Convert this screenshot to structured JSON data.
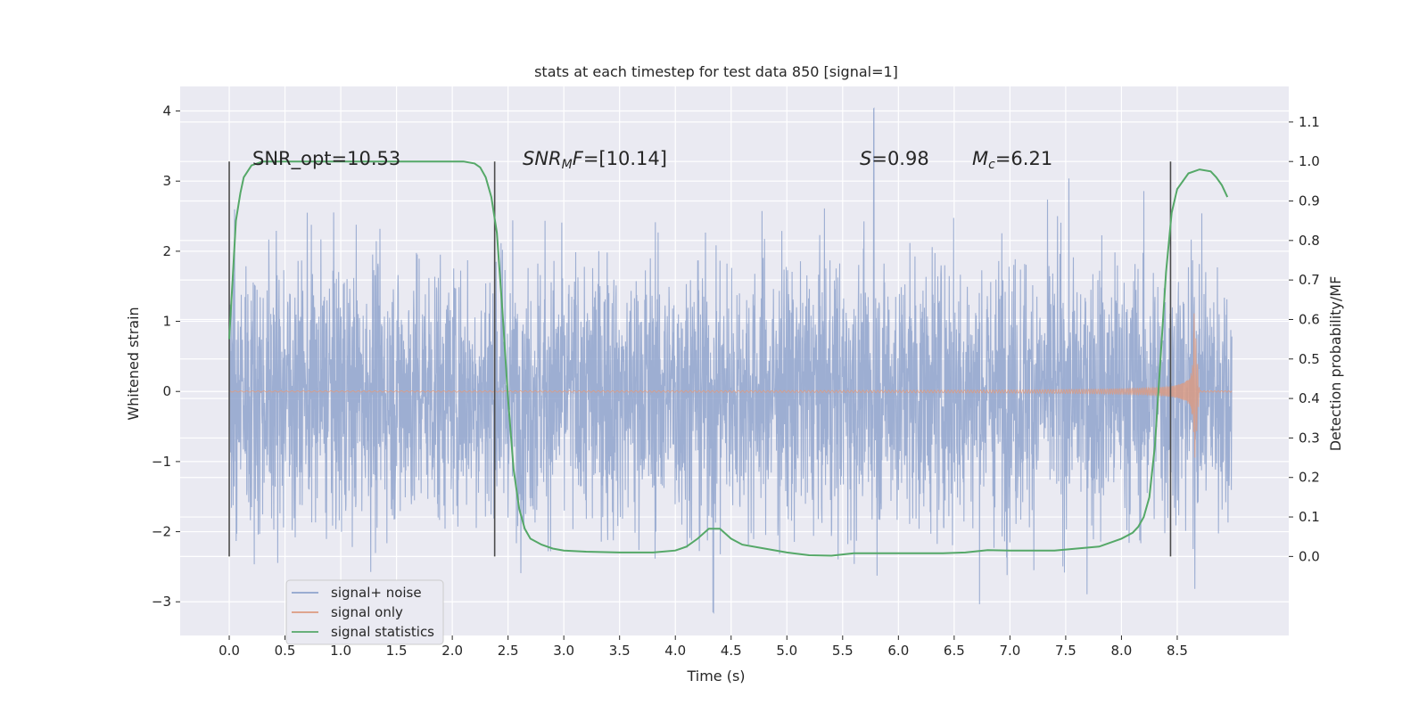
{
  "chart_data": {
    "type": "line",
    "title": "stats at each timestep for test data 850 [signal=1]",
    "xlabel": "Time (s)",
    "ylabel_left": "Whitened strain",
    "ylabel_right": "Detection probability/MF",
    "xlim": [
      -0.44,
      9.5
    ],
    "ylim_left": [
      -3.48,
      4.35
    ],
    "ylim_right": [
      -0.2,
      1.19
    ],
    "grid": true,
    "x_ticks": [
      0.0,
      0.5,
      1.0,
      1.5,
      2.0,
      2.5,
      3.0,
      3.5,
      4.0,
      4.5,
      5.0,
      5.5,
      6.0,
      6.5,
      7.0,
      7.5,
      8.0,
      8.5
    ],
    "x_tick_labels": [
      "0.0",
      "0.5",
      "1.0",
      "1.5",
      "2.0",
      "2.5",
      "3.0",
      "3.5",
      "4.0",
      "4.5",
      "5.0",
      "5.5",
      "6.0",
      "6.5",
      "7.0",
      "7.5",
      "8.0",
      "8.5"
    ],
    "y_ticks_left": [
      -3,
      -2,
      -1,
      0,
      1,
      2,
      3,
      4
    ],
    "y_tick_labels_left": [
      "−3",
      "−2",
      "−1",
      "0",
      "1",
      "2",
      "3",
      "4"
    ],
    "y_ticks_right": [
      0.0,
      0.1,
      0.2,
      0.3,
      0.4,
      0.5,
      0.6,
      0.7,
      0.8,
      0.9,
      1.0,
      1.1
    ],
    "y_tick_labels_right": [
      "0.0",
      "0.1",
      "0.2",
      "0.3",
      "0.4",
      "0.5",
      "0.6",
      "0.7",
      "0.8",
      "0.9",
      "1.0",
      "1.1"
    ],
    "series": [
      {
        "name": "signal+ noise",
        "axis": "left",
        "color": "#8fa3cc",
        "t_range": [
          0.0,
          8.99
        ],
        "typical_amplitude": 1.0,
        "max": 4.02,
        "min": -3.15
      },
      {
        "name": "signal only",
        "axis": "left",
        "color": "#dd9a80",
        "type": "chirp",
        "t_range": [
          0.0,
          8.99
        ],
        "merger_time": 8.65,
        "peak_amplitude": 0.95,
        "min_amplitude": -1.15
      },
      {
        "name": "signal statistics",
        "axis": "right",
        "color": "#55a868",
        "x": [
          0.0,
          0.03,
          0.06,
          0.1,
          0.13,
          0.2,
          0.3,
          0.5,
          1.0,
          1.5,
          2.0,
          2.1,
          2.2,
          2.25,
          2.3,
          2.35,
          2.4,
          2.45,
          2.5,
          2.55,
          2.6,
          2.65,
          2.7,
          2.8,
          2.9,
          3.0,
          3.2,
          3.5,
          3.8,
          4.0,
          4.1,
          4.2,
          4.3,
          4.4,
          4.5,
          4.6,
          4.8,
          5.0,
          5.2,
          5.4,
          5.6,
          6.0,
          6.4,
          6.6,
          6.8,
          7.0,
          7.4,
          7.8,
          8.0,
          8.1,
          8.15,
          8.2,
          8.25,
          8.3,
          8.35,
          8.4,
          8.45,
          8.5,
          8.6,
          8.7,
          8.8,
          8.85,
          8.9,
          8.95
        ],
        "y": [
          0.55,
          0.7,
          0.85,
          0.92,
          0.96,
          0.99,
          1.0,
          1.0,
          1.0,
          1.0,
          1.0,
          1.0,
          0.995,
          0.985,
          0.96,
          0.91,
          0.82,
          0.62,
          0.4,
          0.22,
          0.12,
          0.07,
          0.045,
          0.03,
          0.02,
          0.015,
          0.012,
          0.01,
          0.01,
          0.015,
          0.025,
          0.045,
          0.07,
          0.07,
          0.045,
          0.03,
          0.02,
          0.01,
          0.003,
          0.002,
          0.008,
          0.008,
          0.008,
          0.01,
          0.016,
          0.015,
          0.015,
          0.025,
          0.045,
          0.06,
          0.075,
          0.1,
          0.15,
          0.28,
          0.5,
          0.72,
          0.87,
          0.93,
          0.97,
          0.98,
          0.975,
          0.96,
          0.94,
          0.91
        ]
      }
    ],
    "vertical_lines": [
      0.0,
      2.38,
      8.44
    ],
    "vertical_line_range_right": [
      0.0,
      1.0
    ],
    "annotations": [
      {
        "text": "SNR_opt=10.53",
        "x": 0.2,
        "y_right": 1.0
      },
      {
        "text": "SNRMF=[10.14]",
        "x": 2.6,
        "y_right": 1.0
      },
      {
        "text": "S=0.98",
        "x": 5.6,
        "y_right": 1.0
      },
      {
        "text": "Mc=6.21",
        "x": 6.6,
        "y_right": 1.0
      }
    ],
    "legend": {
      "location": "lower-left",
      "entries": [
        "signal+ noise",
        "signal only",
        "signal statistics"
      ]
    }
  },
  "annotation_parts": {
    "snr_opt": "SNR_opt=10.53",
    "snr_mf_name": "SNR",
    "snr_mf_sub": "M",
    "snr_mf_name2": "F",
    "snr_mf_value": "=[10.14]",
    "s_name": "S",
    "s_value": "=0.98",
    "mc_name": "M",
    "mc_sub": "c",
    "mc_value": "=6.21"
  },
  "colors": {
    "background": "#eaeaf2",
    "grid": "#ffffff",
    "noise": "#8fa3cc",
    "signal": "#dd9a80",
    "stat": "#55a868",
    "vline": "#4c4c4c"
  }
}
